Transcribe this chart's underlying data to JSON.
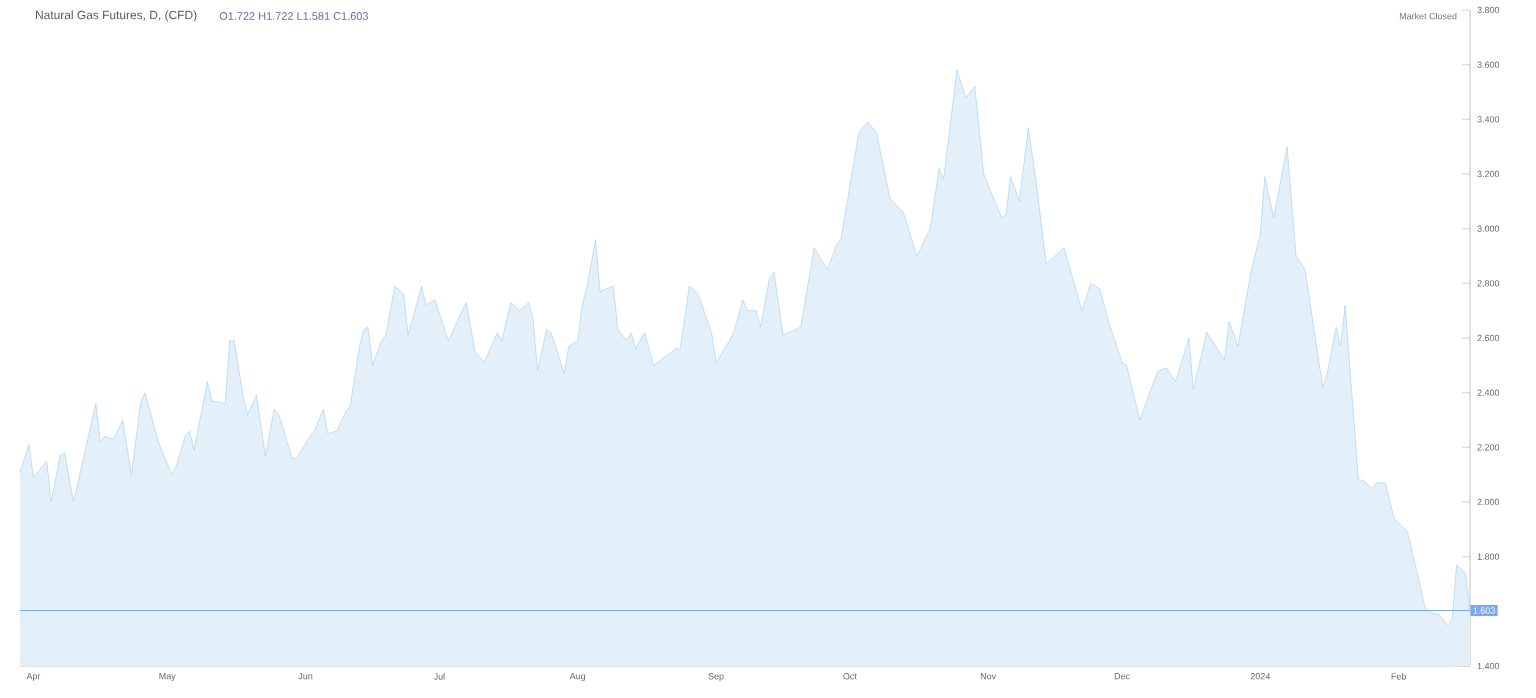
{
  "chart_data": {
    "type": "area",
    "title": "Natural Gas Futures, D, (CFD)",
    "annotations": [
      "O1.722 H1.722 L1.581 C1.603",
      "Market Closed"
    ],
    "x": [
      "2023-03-29",
      "2023-03-31",
      "2023-04-01",
      "2023-04-04",
      "2023-04-05",
      "2023-04-07",
      "2023-04-08",
      "2023-04-10",
      "2023-04-15",
      "2023-04-16",
      "2023-04-17",
      "2023-04-19",
      "2023-04-21",
      "2023-04-23",
      "2023-04-25",
      "2023-04-26",
      "2023-04-29",
      "2023-05-02",
      "2023-05-03",
      "2023-05-05",
      "2023-05-06",
      "2023-05-07",
      "2023-05-10",
      "2023-05-11",
      "2023-05-14",
      "2023-05-15",
      "2023-05-16",
      "2023-05-18",
      "2023-05-19",
      "2023-05-21",
      "2023-05-23",
      "2023-05-25",
      "2023-05-26",
      "2023-05-29",
      "2023-05-30",
      "2023-06-02",
      "2023-06-03",
      "2023-06-05",
      "2023-06-06",
      "2023-06-08",
      "2023-06-10",
      "2023-06-11",
      "2023-06-13",
      "2023-06-14",
      "2023-06-15",
      "2023-06-16",
      "2023-06-18",
      "2023-06-19",
      "2023-06-21",
      "2023-06-23",
      "2023-06-24",
      "2023-06-27",
      "2023-06-28",
      "2023-06-30",
      "2023-07-03",
      "2023-07-07",
      "2023-07-09",
      "2023-07-11",
      "2023-07-14",
      "2023-07-15",
      "2023-07-17",
      "2023-07-19",
      "2023-07-21",
      "2023-07-22",
      "2023-07-23",
      "2023-07-25",
      "2023-07-26",
      "2023-07-29",
      "2023-07-30",
      "2023-08-01",
      "2023-08-02",
      "2023-08-03",
      "2023-08-05",
      "2023-08-06",
      "2023-08-09",
      "2023-08-10",
      "2023-08-12",
      "2023-08-13",
      "2023-08-14",
      "2023-08-16",
      "2023-08-18",
      "2023-08-23",
      "2023-08-24",
      "2023-08-26",
      "2023-08-28",
      "2023-08-31",
      "2023-09-01",
      "2023-09-04",
      "2023-09-05",
      "2023-09-07",
      "2023-09-08",
      "2023-09-10",
      "2023-09-11",
      "2023-09-13",
      "2023-09-14",
      "2023-09-16",
      "2023-09-20",
      "2023-09-23",
      "2023-09-26",
      "2023-09-28",
      "2023-09-29",
      "2023-10-03",
      "2023-10-05",
      "2023-10-07",
      "2023-10-10",
      "2023-10-13",
      "2023-10-16",
      "2023-10-19",
      "2023-10-21",
      "2023-10-22",
      "2023-10-25",
      "2023-10-27",
      "2023-10-29",
      "2023-10-31",
      "2023-11-04",
      "2023-11-05",
      "2023-11-06",
      "2023-11-08",
      "2023-11-10",
      "2023-11-12",
      "2023-11-14",
      "2023-11-18",
      "2023-11-22",
      "2023-11-24",
      "2023-11-26",
      "2023-11-28",
      "2023-12-01",
      "2023-12-02",
      "2023-12-05",
      "2023-12-09",
      "2023-12-11",
      "2023-12-13",
      "2023-12-16",
      "2023-12-17",
      "2023-12-20",
      "2023-12-24",
      "2023-12-25",
      "2023-12-27",
      "2023-12-30",
      "2024-01-01",
      "2024-01-02",
      "2024-01-04",
      "2024-01-07",
      "2024-01-09",
      "2024-01-11",
      "2024-01-15",
      "2024-01-16",
      "2024-01-18",
      "2024-01-19",
      "2024-01-20",
      "2024-01-23",
      "2024-01-24",
      "2024-01-26",
      "2024-01-27",
      "2024-01-29",
      "2024-01-31",
      "2024-02-03",
      "2024-02-07",
      "2024-02-09",
      "2024-02-10",
      "2024-02-12",
      "2024-02-13",
      "2024-02-14",
      "2024-02-16",
      "2024-02-17"
    ],
    "series": [
      {
        "color": "#8ec4ea",
        "values": [
          2.11,
          2.21,
          2.09,
          2.15,
          2.0,
          2.17,
          2.18,
          2.0,
          2.36,
          2.22,
          2.24,
          2.23,
          2.3,
          2.1,
          2.36,
          2.4,
          2.22,
          2.1,
          2.13,
          2.24,
          2.26,
          2.19,
          2.44,
          2.37,
          2.36,
          2.59,
          2.59,
          2.39,
          2.32,
          2.39,
          2.17,
          2.34,
          2.32,
          2.16,
          2.16,
          2.24,
          2.26,
          2.34,
          2.25,
          2.26,
          2.33,
          2.35,
          2.56,
          2.63,
          2.64,
          2.5,
          2.59,
          2.61,
          2.79,
          2.76,
          2.61,
          2.79,
          2.72,
          2.74,
          2.59,
          2.73,
          2.55,
          2.51,
          2.62,
          2.59,
          2.73,
          2.7,
          2.73,
          2.67,
          2.48,
          2.63,
          2.62,
          2.47,
          2.57,
          2.59,
          2.72,
          2.78,
          2.96,
          2.77,
          2.79,
          2.63,
          2.59,
          2.62,
          2.56,
          2.62,
          2.5,
          2.56,
          2.56,
          2.79,
          2.76,
          2.62,
          2.51,
          2.59,
          2.62,
          2.74,
          2.7,
          2.7,
          2.64,
          2.82,
          2.84,
          2.61,
          2.64,
          2.93,
          2.85,
          2.94,
          2.96,
          3.35,
          3.39,
          3.35,
          3.11,
          3.06,
          2.9,
          3.0,
          3.22,
          3.18,
          3.58,
          3.48,
          3.52,
          3.2,
          3.04,
          3.05,
          3.19,
          3.1,
          3.37,
          3.14,
          2.87,
          2.93,
          2.7,
          2.8,
          2.78,
          2.66,
          2.51,
          2.5,
          2.3,
          2.48,
          2.49,
          2.44,
          2.6,
          2.41,
          2.62,
          2.52,
          2.66,
          2.57,
          2.85,
          2.98,
          3.19,
          3.04,
          3.3,
          2.9,
          2.85,
          2.42,
          2.47,
          2.64,
          2.57,
          2.72,
          2.08,
          2.08,
          2.05,
          2.07,
          2.07,
          1.94,
          1.89,
          1.61,
          1.59,
          1.59,
          1.55,
          1.57,
          1.77,
          1.74,
          1.6
        ]
      }
    ],
    "xlim": [
      "2023-03-29",
      "2024-02-17"
    ],
    "xticks": [
      {
        "value": "2023-04-01",
        "label": "Apr"
      },
      {
        "value": "2023-05-01",
        "label": "May"
      },
      {
        "value": "2023-06-01",
        "label": "Jun"
      },
      {
        "value": "2023-07-01",
        "label": "Jul"
      },
      {
        "value": "2023-08-01",
        "label": "Aug"
      },
      {
        "value": "2023-09-01",
        "label": "Sep"
      },
      {
        "value": "2023-10-01",
        "label": "Oct"
      },
      {
        "value": "2023-11-01",
        "label": "Nov"
      },
      {
        "value": "2023-12-01",
        "label": "Dec"
      },
      {
        "value": "2024-01-01",
        "label": "2024"
      },
      {
        "value": "2024-02-01",
        "label": "Feb"
      }
    ],
    "ylim": [
      1.4,
      3.8
    ],
    "yticks": [
      {
        "value": 1.4,
        "label": "1.400"
      },
      {
        "value": 1.8,
        "label": "1.800"
      },
      {
        "value": 2.0,
        "label": "2.000"
      },
      {
        "value": 2.2,
        "label": "2.200"
      },
      {
        "value": 2.4,
        "label": "2.400"
      },
      {
        "value": 2.6,
        "label": "2.600"
      },
      {
        "value": 2.8,
        "label": "2.800"
      },
      {
        "value": 3.0,
        "label": "3.000"
      },
      {
        "value": 3.2,
        "label": "3.200"
      },
      {
        "value": 3.4,
        "label": "3.400"
      },
      {
        "value": 3.6,
        "label": "3.600"
      },
      {
        "value": 3.8,
        "label": "3.800"
      }
    ],
    "ref_lines": [
      {
        "axis": "y",
        "value": 1.603,
        "label": "1.603",
        "color": "#7ea8ee"
      }
    ]
  }
}
